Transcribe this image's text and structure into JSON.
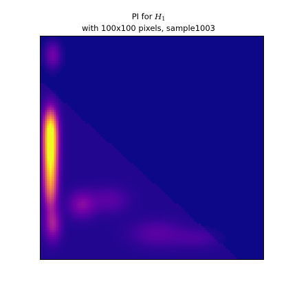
{
  "title": {
    "line1_prefix": "PI for ",
    "line1_symbol": "H",
    "line1_subscript": "1",
    "line2": "with 100x100 pixels, sample1003"
  },
  "chart_data": {
    "type": "heatmap",
    "title": "PI for H_1 with 100x100 pixels, sample1003",
    "grid": false,
    "axes_visible": false,
    "resolution": [
      100,
      100
    ],
    "colormap": "plasma",
    "colormap_stops": [
      "#0d0887",
      "#46039f",
      "#7201a8",
      "#9c179e",
      "#bd3786",
      "#d8576b",
      "#ed7953",
      "#fb9f3a",
      "#fdca26",
      "#f0f921"
    ],
    "value_range": [
      0,
      1
    ],
    "hotspots": [
      {
        "col": 4,
        "row": 52,
        "value": 1.0
      },
      {
        "col": 4,
        "row": 40,
        "value": 0.6
      },
      {
        "col": 4,
        "row": 68,
        "value": 0.45
      },
      {
        "col": 5,
        "row": 84,
        "value": 0.3
      },
      {
        "col": 5,
        "row": 8,
        "value": 0.22
      },
      {
        "col": 18,
        "row": 75,
        "value": 0.22
      },
      {
        "col": 30,
        "row": 73,
        "value": 0.12
      },
      {
        "col": 52,
        "row": 88,
        "value": 0.12
      },
      {
        "col": 70,
        "row": 90,
        "value": 0.08
      }
    ]
  }
}
